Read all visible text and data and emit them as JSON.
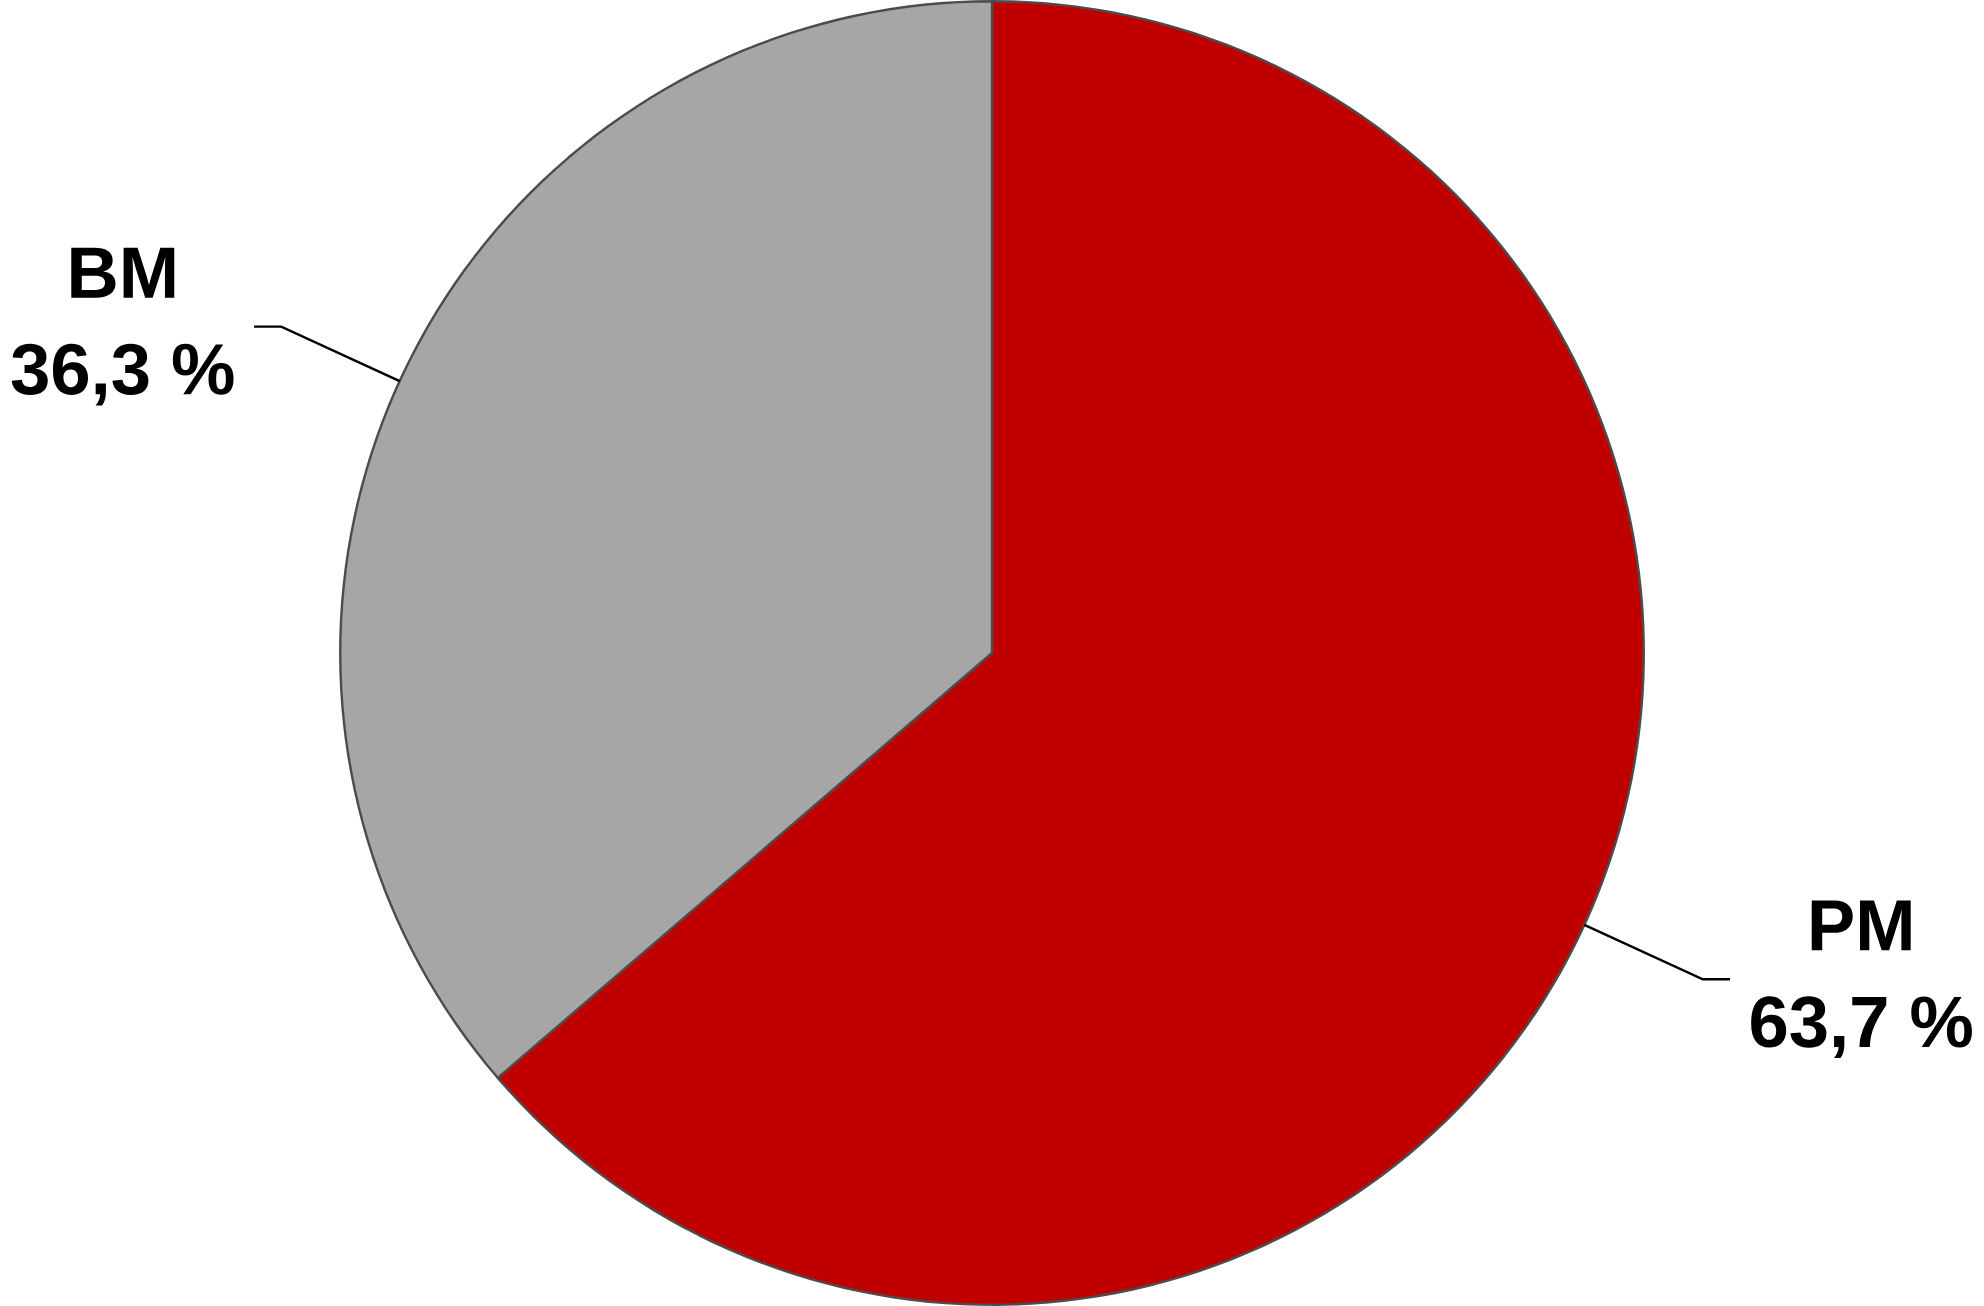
{
  "chart_data": {
    "type": "pie",
    "categories": [
      "PM",
      "BM"
    ],
    "values": [
      63.7,
      36.3
    ],
    "colors": [
      "#c00000",
      "#a6a6a6"
    ],
    "value_labels": [
      "63,7 %",
      "36,3 %"
    ]
  }
}
